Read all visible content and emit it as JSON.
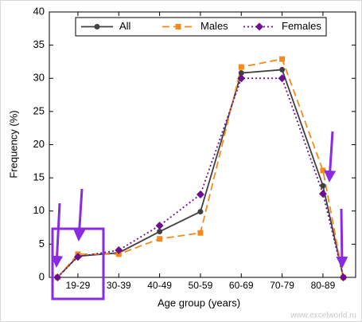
{
  "chart_data": {
    "type": "line",
    "y_label": "Frequency (%)",
    "x_label": "Age group (years)",
    "watermark": "www.excelworld.ru",
    "x": [
      0.5,
      1,
      2,
      3,
      4,
      5,
      6,
      7,
      7.5
    ],
    "xlim": [
      0.3,
      7.8
    ],
    "xticks": [
      {
        "value": 1,
        "label": "19-29"
      },
      {
        "value": 2,
        "label": "30-39"
      },
      {
        "value": 3,
        "label": "40-49"
      },
      {
        "value": 4,
        "label": "50-59"
      },
      {
        "value": 5,
        "label": "60-69"
      },
      {
        "value": 6,
        "label": "70-79"
      },
      {
        "value": 7,
        "label": "80-89"
      }
    ],
    "ylim": [
      0,
      40
    ],
    "yticks": [
      0,
      5,
      10,
      15,
      20,
      25,
      30,
      35,
      40
    ],
    "legend": "top",
    "series": [
      {
        "name": "All",
        "color": "#404040",
        "dash": "",
        "marker": "circle",
        "values": [
          0,
          3.2,
          3.7,
          6.9,
          9.9,
          30.8,
          31.3,
          13.8,
          0
        ]
      },
      {
        "name": "Males",
        "color": "#f28a1e",
        "dash": "9,5",
        "marker": "square",
        "values": [
          0,
          3.5,
          3.5,
          5.8,
          6.7,
          31.7,
          32.9,
          16.1,
          0
        ]
      },
      {
        "name": "Females",
        "color": "#6b108f",
        "dash": "2,3",
        "marker": "diamond",
        "values": [
          0,
          3.1,
          4.1,
          7.8,
          12.5,
          30.0,
          30.0,
          12.6,
          0
        ]
      }
    ]
  }
}
